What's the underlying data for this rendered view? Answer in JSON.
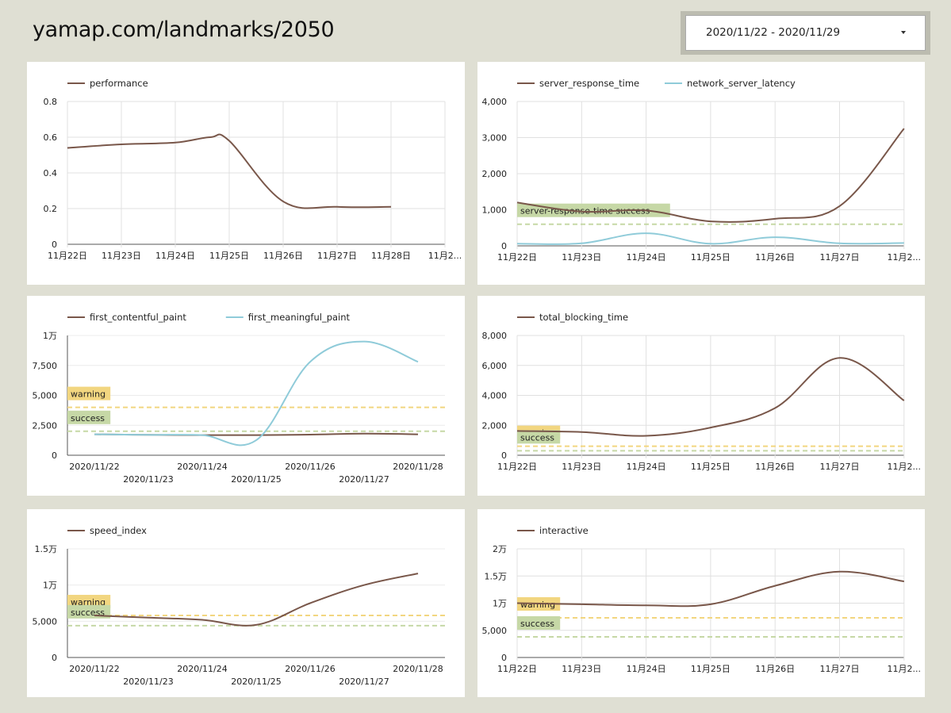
{
  "header": {
    "title": "yamap.com/landmarks/2050",
    "date_range": "2020/11/22 - 2020/11/29"
  },
  "colors": {
    "brown": "#79574a",
    "blue": "#8fcbd9",
    "warning": "#f2d680",
    "success": "#c6d8a6",
    "grid": "#e0e0e0"
  },
  "chart_data": [
    {
      "id": "performance",
      "type": "line",
      "legend": [
        "performance"
      ],
      "grid": true,
      "legend_position": "top-left",
      "x": [
        "11月22日",
        "11月23日",
        "11月24日",
        "11月25日",
        "11月26日",
        "11月27日",
        "11月28日",
        "11月2..."
      ],
      "ylim": [
        0,
        0.8
      ],
      "yticks": [
        0,
        0.2,
        0.4,
        0.6,
        0.8
      ],
      "ytick_labels": [
        "0",
        "0.2",
        "0.4",
        "0.6",
        "0.8"
      ],
      "series": [
        {
          "name": "performance",
          "color": "brown",
          "values": [
            0.54,
            0.56,
            0.57,
            0.58,
            0.24,
            0.21,
            0.21,
            null
          ],
          "extra": [
            [
              2.65,
              0.6
            ]
          ]
        }
      ],
      "thresholds": []
    },
    {
      "id": "server",
      "type": "line",
      "legend": [
        "server_response_time",
        "network_server_latency"
      ],
      "grid": true,
      "legend_position": "top-left",
      "x": [
        "11月22日",
        "11月23日",
        "11月24日",
        "11月25日",
        "11月26日",
        "11月27日",
        "11月2..."
      ],
      "ylim": [
        0,
        4000
      ],
      "yticks": [
        0,
        1000,
        2000,
        3000,
        4000
      ],
      "ytick_labels": [
        "0",
        "1,000",
        "2,000",
        "3,000",
        "4,000"
      ],
      "series": [
        {
          "name": "server_response_time",
          "color": "brown",
          "values": [
            1200,
            950,
            980,
            680,
            750,
            1100,
            3250
          ]
        },
        {
          "name": "network_server_latency",
          "color": "blue",
          "values": [
            60,
            70,
            350,
            60,
            240,
            70,
            80
          ]
        }
      ],
      "thresholds": [
        {
          "label": "server-response-time success",
          "value": 600,
          "color": "success"
        }
      ]
    },
    {
      "id": "paint",
      "type": "line",
      "legend": [
        "first_contentful_paint",
        "first_meaningful_paint"
      ],
      "grid": false,
      "legend_position": "top-left",
      "x": [
        "2020/11/22",
        "2020/11/23",
        "2020/11/24",
        "2020/11/25",
        "2020/11/26",
        "2020/11/27",
        "2020/11/28"
      ],
      "staggered_x_labels": true,
      "ylim": [
        0,
        10000
      ],
      "yticks": [
        0,
        2500,
        5000,
        7500,
        10000
      ],
      "ytick_labels": [
        "0",
        "2,500",
        "5,000",
        "7,500",
        "1万"
      ],
      "series": [
        {
          "name": "first_contentful_paint",
          "color": "brown",
          "values": [
            1750,
            1700,
            1680,
            1680,
            1720,
            1800,
            1750
          ]
        },
        {
          "name": "first_meaningful_paint",
          "color": "blue",
          "values": [
            1750,
            1700,
            1680,
            1250,
            7800,
            9500,
            7800
          ]
        }
      ],
      "thresholds": [
        {
          "label": "warning",
          "value": 4000,
          "color": "warning"
        },
        {
          "label": "success",
          "value": 2000,
          "color": "success"
        }
      ]
    },
    {
      "id": "tbt",
      "type": "line",
      "legend": [
        "total_blocking_time"
      ],
      "grid": true,
      "legend_position": "top-left",
      "x": [
        "11月22日",
        "11月23日",
        "11月24日",
        "11月25日",
        "11月26日",
        "11月27日",
        "11月2..."
      ],
      "ylim": [
        0,
        8000
      ],
      "yticks": [
        0,
        2000,
        4000,
        6000,
        8000
      ],
      "ytick_labels": [
        "0",
        "2,000",
        "4,000",
        "6,000",
        "8,000"
      ],
      "series": [
        {
          "name": "total_blocking_time",
          "color": "brown",
          "values": [
            1620,
            1550,
            1300,
            1850,
            3150,
            6500,
            3650
          ]
        }
      ],
      "thresholds": [
        {
          "label": "warning",
          "value": 600,
          "color": "warning"
        },
        {
          "label": "success",
          "value": 300,
          "color": "success"
        }
      ]
    },
    {
      "id": "speed",
      "type": "line",
      "legend": [
        "speed_index"
      ],
      "grid": false,
      "legend_position": "top-left",
      "x": [
        "2020/11/22",
        "2020/11/23",
        "2020/11/24",
        "2020/11/25",
        "2020/11/26",
        "2020/11/27",
        "2020/11/28"
      ],
      "staggered_x_labels": true,
      "ylim": [
        0,
        15000
      ],
      "yticks": [
        0,
        5000,
        10000,
        15000
      ],
      "ytick_labels": [
        "0",
        "5,000",
        "1万",
        "1.5万"
      ],
      "series": [
        {
          "name": "speed_index",
          "color": "brown",
          "values": [
            5800,
            5500,
            5200,
            4500,
            7500,
            10000,
            11600
          ]
        }
      ],
      "thresholds": [
        {
          "label": "warning",
          "value": 5800,
          "color": "warning"
        },
        {
          "label": "success",
          "value": 4400,
          "color": "success"
        }
      ]
    },
    {
      "id": "interactive",
      "type": "line",
      "legend": [
        "interactive"
      ],
      "grid": true,
      "legend_position": "top-left",
      "x": [
        "11月22日",
        "11月23日",
        "11月24日",
        "11月25日",
        "11月26日",
        "11月27日",
        "11月2..."
      ],
      "ylim": [
        0,
        20000
      ],
      "yticks": [
        0,
        5000,
        10000,
        15000,
        20000
      ],
      "ytick_labels": [
        "0",
        "5,000",
        "1万",
        "1.5万",
        "2万"
      ],
      "series": [
        {
          "name": "interactive",
          "color": "brown",
          "values": [
            10000,
            9800,
            9600,
            9800,
            13200,
            15800,
            14000
          ]
        }
      ],
      "thresholds": [
        {
          "label": "warning",
          "value": 7300,
          "color": "warning"
        },
        {
          "label": "success",
          "value": 3800,
          "color": "success"
        }
      ]
    }
  ]
}
